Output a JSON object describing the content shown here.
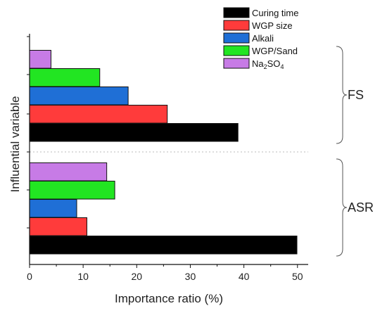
{
  "chart_data": {
    "type": "bar",
    "orientation": "horizontal",
    "xlabel": "Importance ratio (%)",
    "ylabel": "Influential variable",
    "xlim": [
      0,
      52
    ],
    "xticks": [
      "0",
      "10",
      "20",
      "30",
      "40",
      "50"
    ],
    "grid": false,
    "legend_position": "top-right",
    "groups": [
      {
        "name": "FS",
        "bars": [
          {
            "series": "Curing time",
            "value": 38.9
          },
          {
            "series": "WGP size",
            "value": 25.7
          },
          {
            "series": "Alkali",
            "value": 18.4
          },
          {
            "series": "WGP/Sand",
            "value": 13.1
          },
          {
            "series": "Na2SO4",
            "value": 4.0
          }
        ]
      },
      {
        "name": "ASR",
        "bars": [
          {
            "series": "Curing time",
            "value": 49.9
          },
          {
            "series": "WGP size",
            "value": 10.7
          },
          {
            "series": "Alkali",
            "value": 8.8
          },
          {
            "series": "WGP/Sand",
            "value": 15.9
          },
          {
            "series": "Na2SO4",
            "value": 14.4
          }
        ]
      }
    ],
    "series": [
      {
        "name": "Curing time",
        "color": "#000000"
      },
      {
        "name": "WGP size",
        "color": "#ff3b3b"
      },
      {
        "name": "Alkali",
        "color": "#1f6fd6"
      },
      {
        "name": "WGP/Sand",
        "color": "#22e522"
      },
      {
        "name": "Na2SO4",
        "color": "#c77be6"
      }
    ],
    "legend": [
      {
        "base": "Curing time",
        "sub": "",
        "tail": ""
      },
      {
        "base": "WGP size",
        "sub": "",
        "tail": ""
      },
      {
        "base": "Alkali",
        "sub": "",
        "tail": ""
      },
      {
        "base": "WGP/Sand",
        "sub": "",
        "tail": ""
      },
      {
        "base": "Na",
        "sub": "2",
        "tail": "SO",
        "sub2": "4"
      }
    ]
  }
}
